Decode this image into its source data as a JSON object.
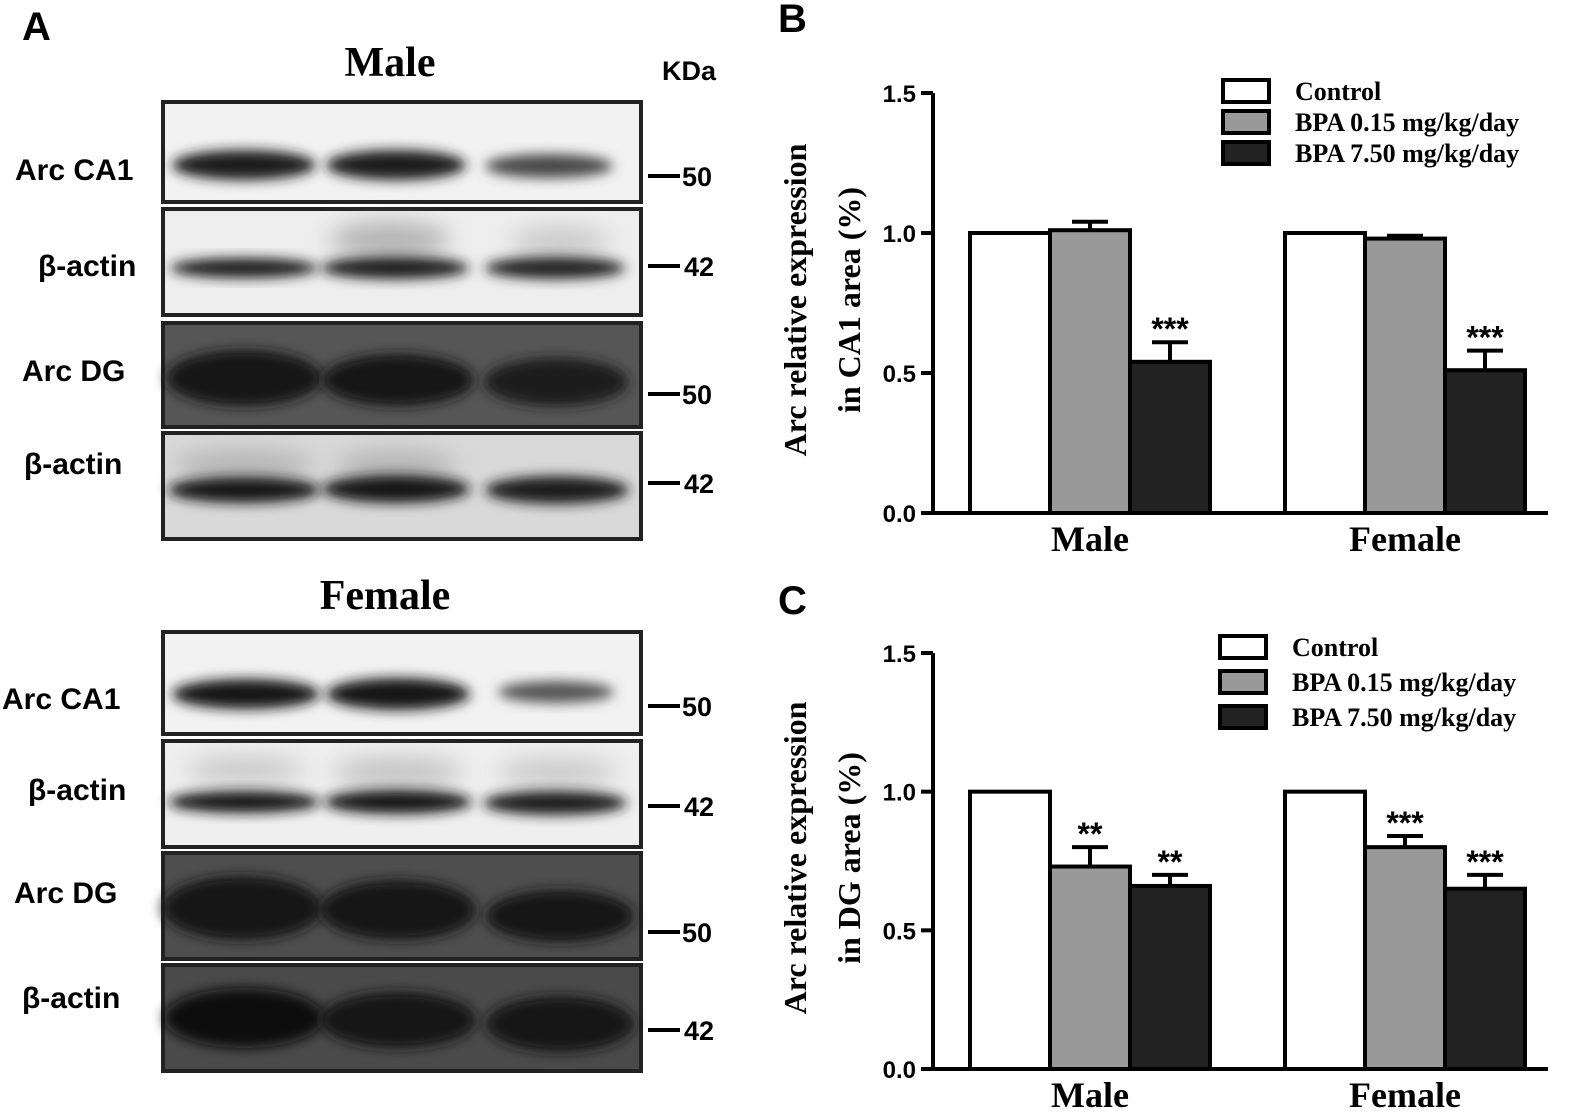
{
  "panel_a": {
    "letter": "A",
    "unit_label": "KDa",
    "groups": [
      {
        "title": "Male",
        "rows": [
          {
            "label": "Arc  CA1",
            "marker": "50",
            "tone": "light"
          },
          {
            "label": "β-actin",
            "marker": "42",
            "tone": "light"
          },
          {
            "label": "Arc  DG",
            "marker": "50",
            "tone": "dark"
          },
          {
            "label": "β-actin",
            "marker": "42",
            "tone": "medium"
          }
        ]
      },
      {
        "title": "Female",
        "rows": [
          {
            "label": "Arc  CA1",
            "marker": "50",
            "tone": "light"
          },
          {
            "label": "β-actin",
            "marker": "42",
            "tone": "light"
          },
          {
            "label": "Arc  DG",
            "marker": "50",
            "tone": "dark"
          },
          {
            "label": "β-actin",
            "marker": "42",
            "tone": "dark"
          }
        ]
      }
    ]
  },
  "chart_data": [
    {
      "panel": "B",
      "type": "bar",
      "ylabel": "Arc relative expression in CA1 area (%)",
      "ylabel_lines": [
        "Arc relative expression",
        "in CA1 area (%)"
      ],
      "categories": [
        "Male",
        "Female"
      ],
      "ylim": [
        0,
        1.5
      ],
      "yticks": [
        "0.0",
        "0.5",
        "1.0",
        "1.5"
      ],
      "legend_position": "top-right",
      "series": [
        {
          "name": "Control",
          "color": "#ffffff",
          "values": [
            1.0,
            1.0
          ],
          "errors": [
            0,
            0
          ],
          "sig": [
            "",
            ""
          ]
        },
        {
          "name": "BPA 0.15 mg/kg/day",
          "color": "#999999",
          "values": [
            1.01,
            0.98
          ],
          "errors": [
            0.03,
            0.01
          ],
          "sig": [
            "",
            ""
          ]
        },
        {
          "name": "BPA 7.50 mg/kg/day",
          "color": "#222222",
          "values": [
            0.54,
            0.51
          ],
          "errors": [
            0.07,
            0.07
          ],
          "sig": [
            "***",
            "***"
          ]
        }
      ]
    },
    {
      "panel": "C",
      "type": "bar",
      "ylabel": "Arc relative expression in DG area (%)",
      "ylabel_lines": [
        "Arc relative expression",
        "in DG area (%)"
      ],
      "categories": [
        "Male",
        "Female"
      ],
      "ylim": [
        0,
        1.5
      ],
      "yticks": [
        "0.0",
        "0.5",
        "1.0",
        "1.5"
      ],
      "legend_position": "top-right",
      "series": [
        {
          "name": "Control",
          "color": "#ffffff",
          "values": [
            1.0,
            1.0
          ],
          "errors": [
            0,
            0
          ],
          "sig": [
            "",
            ""
          ]
        },
        {
          "name": "BPA 0.15 mg/kg/day",
          "color": "#999999",
          "values": [
            0.73,
            0.8
          ],
          "errors": [
            0.07,
            0.04
          ],
          "sig": [
            "**",
            "***"
          ]
        },
        {
          "name": "BPA 7.50 mg/kg/day",
          "color": "#222222",
          "values": [
            0.66,
            0.65
          ],
          "errors": [
            0.04,
            0.05
          ],
          "sig": [
            "**",
            "***"
          ]
        }
      ]
    }
  ]
}
